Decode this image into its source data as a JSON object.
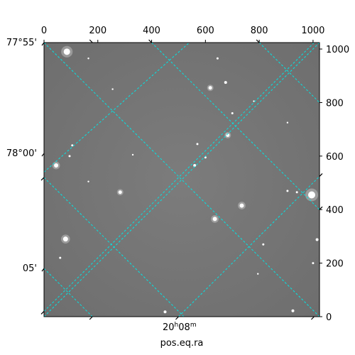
{
  "chart_data": {
    "type": "scatter",
    "title": "",
    "xlabel": "pos.eq.ra",
    "ylabel": "",
    "grid": true,
    "grid_color": "#00e5e5",
    "background_color": "#7a7a7a",
    "pixel_axes": {
      "xlim": [
        0,
        1024
      ],
      "ylim": [
        0,
        1024
      ],
      "x_ticks": [
        0,
        200,
        400,
        600,
        800,
        1000
      ],
      "y_ticks": [
        0,
        200,
        400,
        600,
        800,
        1000
      ]
    },
    "world_axes": {
      "ra_ticks": [
        {
          "label_h": "20",
          "label_h_unit": "h",
          "label_m": "08",
          "label_m_unit": "m",
          "x": 500
        }
      ],
      "dec_ticks": [
        {
          "label": "77°55'",
          "y": 1024
        },
        {
          "label": "78°00'",
          "y": 610
        },
        {
          "label": "05'",
          "y": 180
        }
      ]
    },
    "stars": [
      {
        "x": 85,
        "y": 990,
        "r": 4.5
      },
      {
        "x": 618,
        "y": 855,
        "r": 2.5
      },
      {
        "x": 675,
        "y": 875,
        "r": 2
      },
      {
        "x": 683,
        "y": 678,
        "r": 2.5
      },
      {
        "x": 45,
        "y": 565,
        "r": 3
      },
      {
        "x": 283,
        "y": 465,
        "r": 2.5
      },
      {
        "x": 735,
        "y": 415,
        "r": 3
      },
      {
        "x": 635,
        "y": 365,
        "r": 3
      },
      {
        "x": 80,
        "y": 290,
        "r": 3.5
      },
      {
        "x": 995,
        "y": 455,
        "r": 5
      },
      {
        "x": 1015,
        "y": 288,
        "r": 2
      },
      {
        "x": 560,
        "y": 565,
        "r": 2
      },
      {
        "x": 450,
        "y": 18,
        "r": 2
      },
      {
        "x": 925,
        "y": 22,
        "r": 2
      },
      {
        "x": 700,
        "y": 760,
        "r": 1.5
      },
      {
        "x": 570,
        "y": 645,
        "r": 1.5
      },
      {
        "x": 600,
        "y": 595,
        "r": 1.5
      },
      {
        "x": 105,
        "y": 640,
        "r": 1.5
      },
      {
        "x": 815,
        "y": 270,
        "r": 1.5
      },
      {
        "x": 1000,
        "y": 200,
        "r": 1.5
      },
      {
        "x": 645,
        "y": 965,
        "r": 1.5
      },
      {
        "x": 940,
        "y": 465,
        "r": 1.5
      },
      {
        "x": 905,
        "y": 470,
        "r": 1.5
      },
      {
        "x": 95,
        "y": 600,
        "r": 1.5
      },
      {
        "x": 60,
        "y": 220,
        "r": 1.5
      },
      {
        "x": 165,
        "y": 505,
        "r": 1.2
      },
      {
        "x": 330,
        "y": 605,
        "r": 1.2
      },
      {
        "x": 255,
        "y": 850,
        "r": 1.2
      },
      {
        "x": 165,
        "y": 965,
        "r": 1.2
      },
      {
        "x": 795,
        "y": 160,
        "r": 1.2
      },
      {
        "x": 905,
        "y": 725,
        "r": 1.2
      },
      {
        "x": 780,
        "y": 805,
        "r": 1.2
      }
    ],
    "grid_lines": [
      {
        "x1": 0,
        "y1": 1024,
        "x2": 1024,
        "y2": 0
      },
      {
        "x1": 0,
        "y1": 520,
        "x2": 520,
        "y2": 0
      },
      {
        "x1": 0,
        "y1": 180,
        "x2": 180,
        "y2": 0
      },
      {
        "x1": 400,
        "y1": 1024,
        "x2": 1024,
        "y2": 400
      },
      {
        "x1": 800,
        "y1": 1024,
        "x2": 1024,
        "y2": 800
      },
      {
        "x1": 0,
        "y1": 0,
        "x2": 1024,
        "y2": 1024
      },
      {
        "x1": 0,
        "y1": 540,
        "x2": 540,
        "y2": 1024
      },
      {
        "x1": 0,
        "y1": 20,
        "x2": 1004,
        "y2": 1024
      },
      {
        "x1": 500,
        "y1": 0,
        "x2": 1024,
        "y2": 524
      }
    ]
  }
}
